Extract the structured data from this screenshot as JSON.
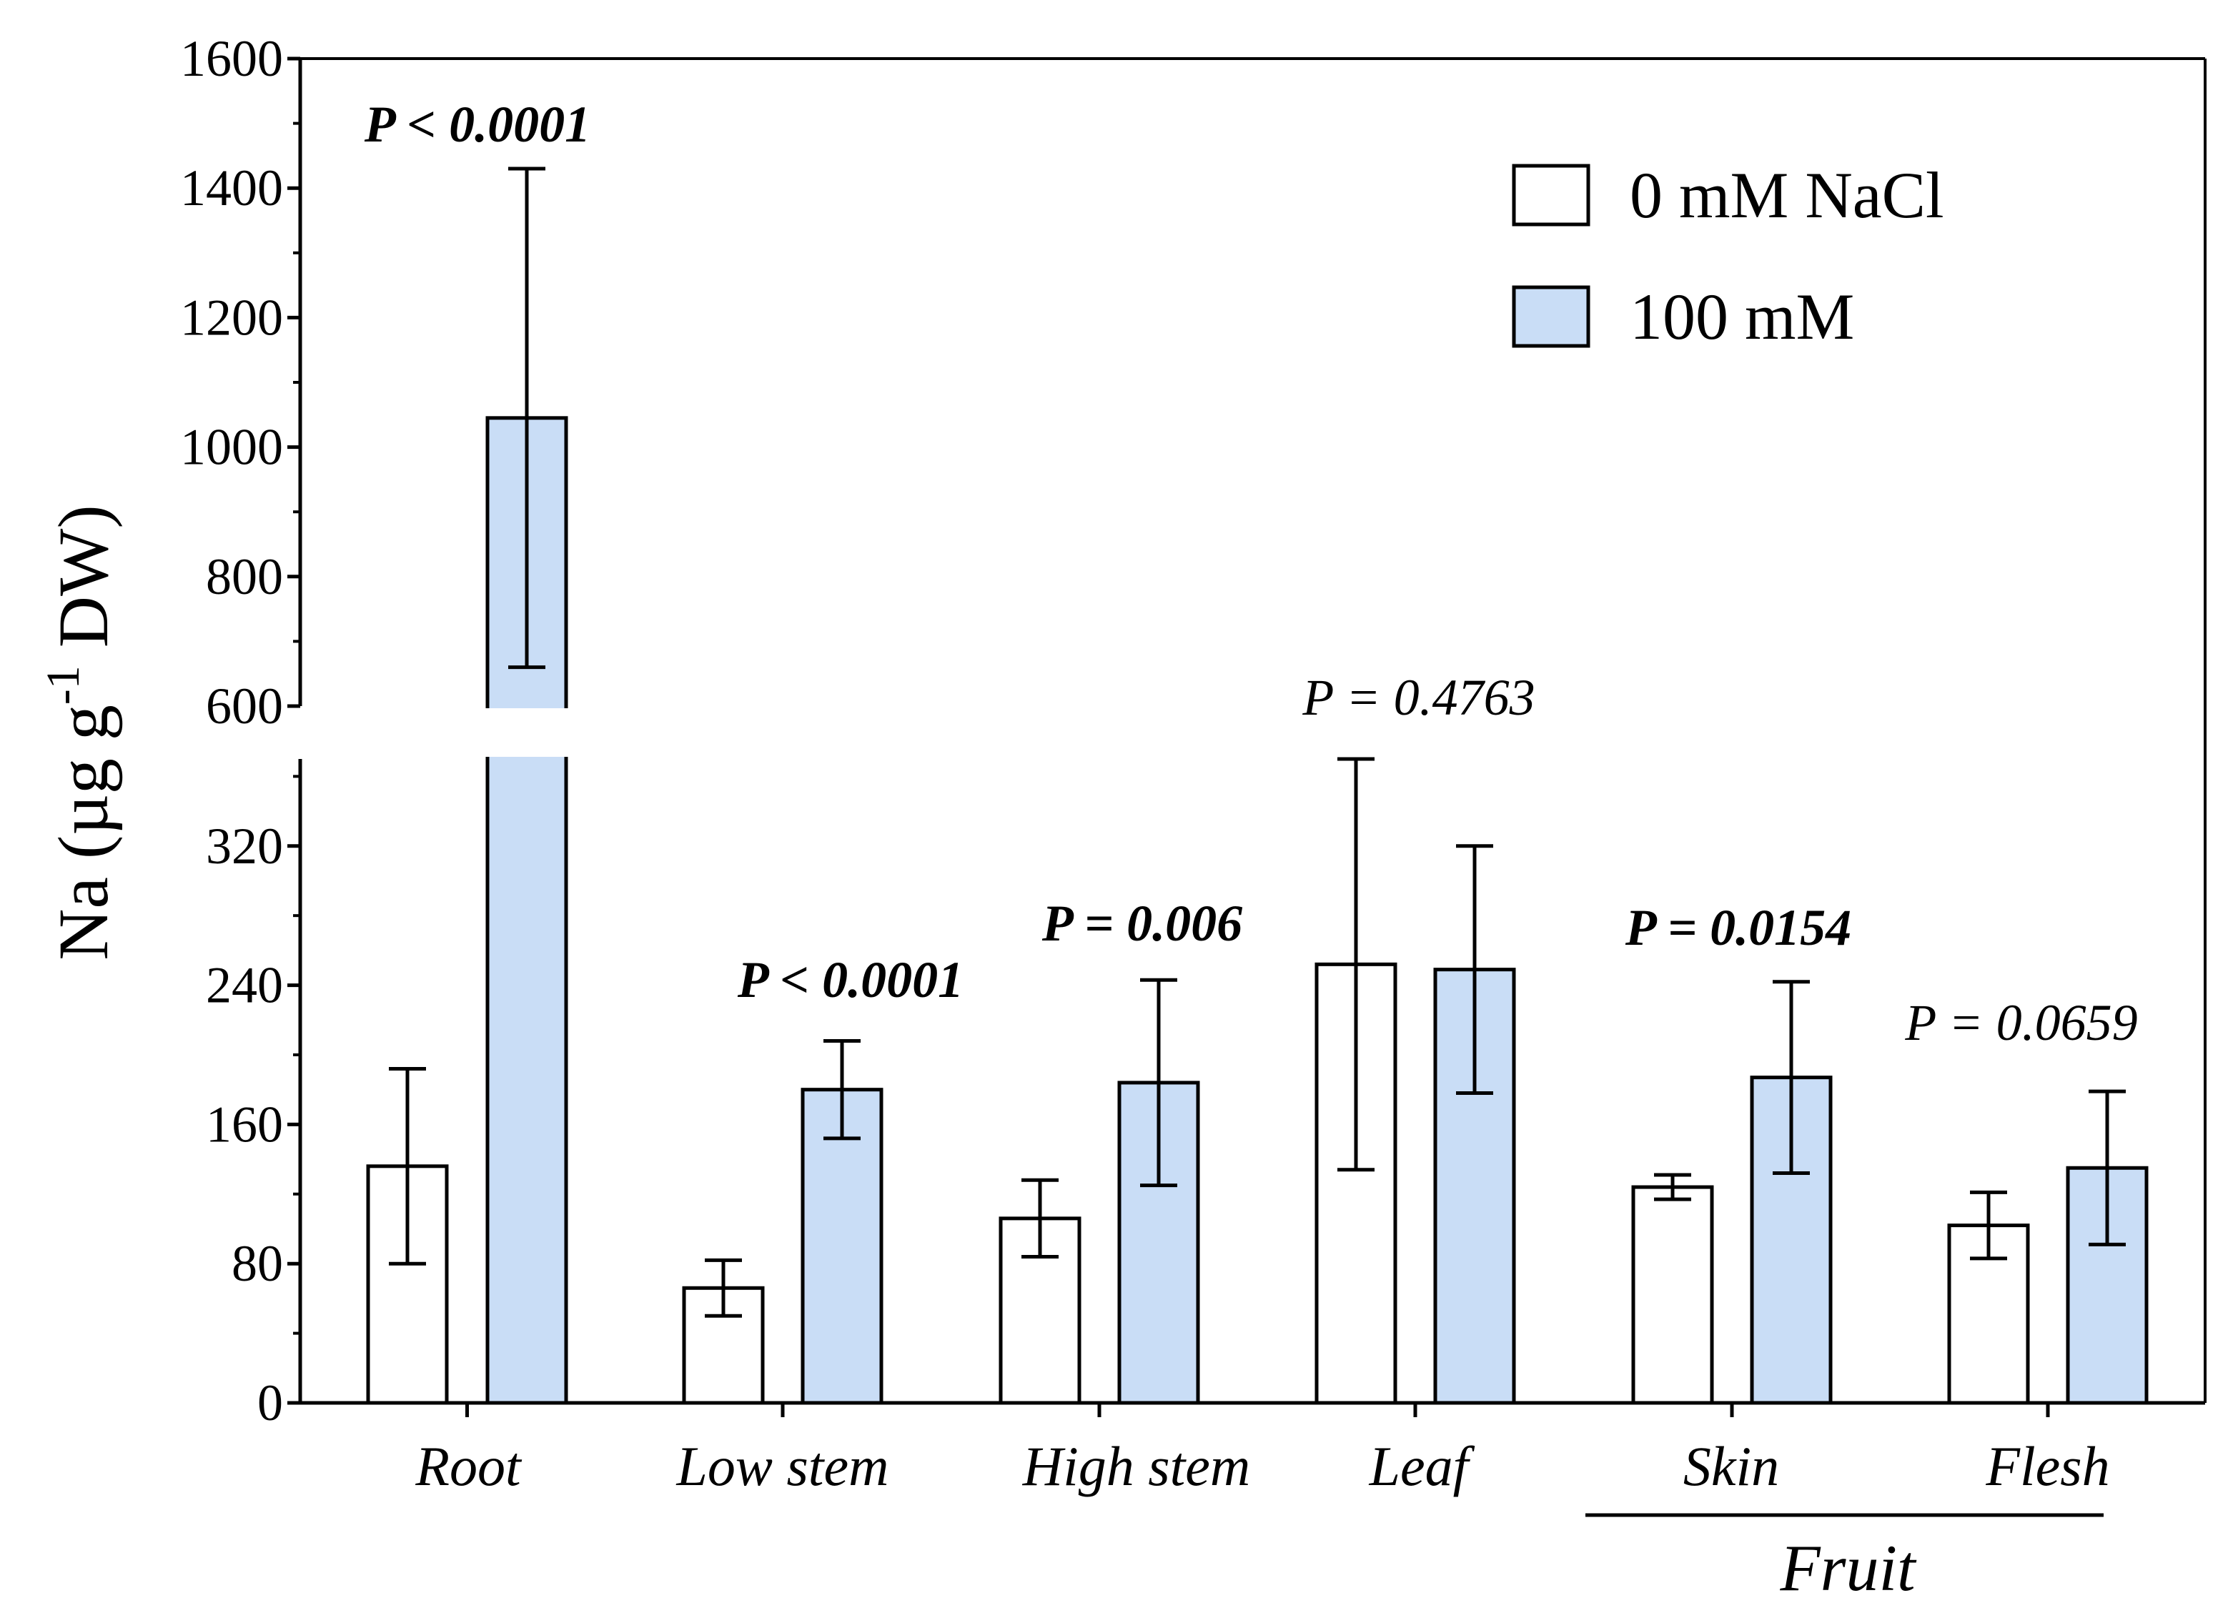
{
  "chart_data": {
    "type": "bar",
    "title": "",
    "xlabel": "",
    "ylabel": "Na (µg g⁻¹ DW)",
    "ylabel_parts": {
      "main": "Na (µg g",
      "sup": "-1",
      "tail": " DW)"
    },
    "axis_break": {
      "lower_max": 370,
      "upper_min": 600
    },
    "ylim_lower": [
      0,
      370
    ],
    "ylim_upper": [
      600,
      1600
    ],
    "yticks_lower": [
      0,
      80,
      160,
      240,
      320
    ],
    "yticks_upper": [
      600,
      800,
      1000,
      1200,
      1400,
      1600
    ],
    "categories": [
      "Root",
      "Low stem",
      "High stem",
      "Leaf",
      "Skin",
      "Flesh"
    ],
    "series": [
      {
        "name": "0 mM NaCl",
        "color": "#ffffff",
        "values": [
          136,
          66,
          106,
          252,
          124,
          102
        ],
        "errors": [
          56,
          16,
          22,
          118,
          7,
          19
        ]
      },
      {
        "name": "100 mM",
        "color": "#c9ddf6",
        "values": [
          1045,
          180,
          184,
          249,
          187,
          135
        ],
        "errors": [
          385,
          28,
          59,
          71,
          55,
          44
        ]
      }
    ],
    "p_values": [
      {
        "text": "P < 0.0001",
        "bold": true
      },
      {
        "text": "P < 0.0001",
        "bold": true
      },
      {
        "text": "P = 0.006",
        "bold": true
      },
      {
        "text": "P = 0.4763",
        "bold": false
      },
      {
        "text": "P = 0.0154",
        "bold": true
      },
      {
        "text": "P = 0.0659",
        "bold": false
      }
    ],
    "group_label": {
      "text": "Fruit",
      "spans": [
        "Skin",
        "Flesh"
      ]
    },
    "legend_position": "top-right"
  }
}
